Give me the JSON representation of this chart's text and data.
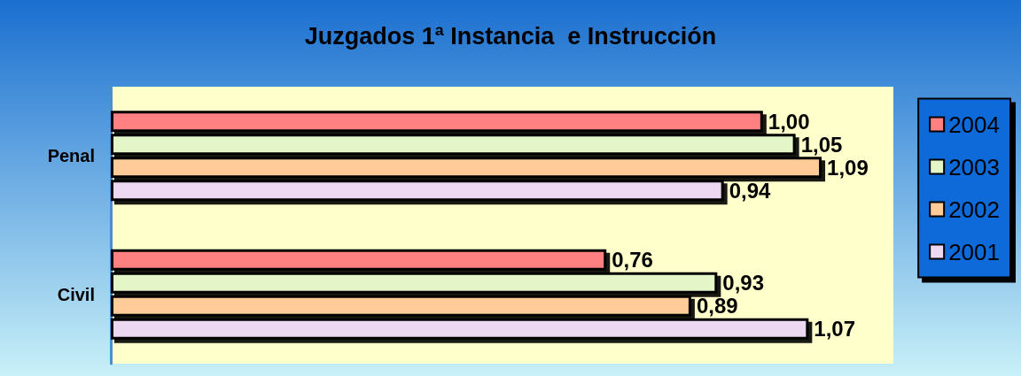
{
  "chart_data": {
    "type": "bar",
    "orientation": "horizontal",
    "title": "Juzgados 1ª Instancia  e Instrucción",
    "categories": [
      "Penal",
      "Civil"
    ],
    "series": [
      {
        "name": "2004",
        "color": "#ff8080",
        "values": [
          1.0,
          0.76
        ],
        "value_labels": [
          "1,00",
          "0,76"
        ]
      },
      {
        "name": "2003",
        "color": "#e4f5c8",
        "values": [
          1.05,
          0.93
        ],
        "value_labels": [
          "1,05",
          "0,93"
        ]
      },
      {
        "name": "2002",
        "color": "#ffcc99",
        "values": [
          1.09,
          0.89
        ],
        "value_labels": [
          "1,09",
          "0,89"
        ]
      },
      {
        "name": "2001",
        "color": "#ecd8f0",
        "values": [
          0.94,
          1.07
        ],
        "value_labels": [
          "0,94",
          "1,07"
        ]
      }
    ],
    "legend": "right"
  }
}
